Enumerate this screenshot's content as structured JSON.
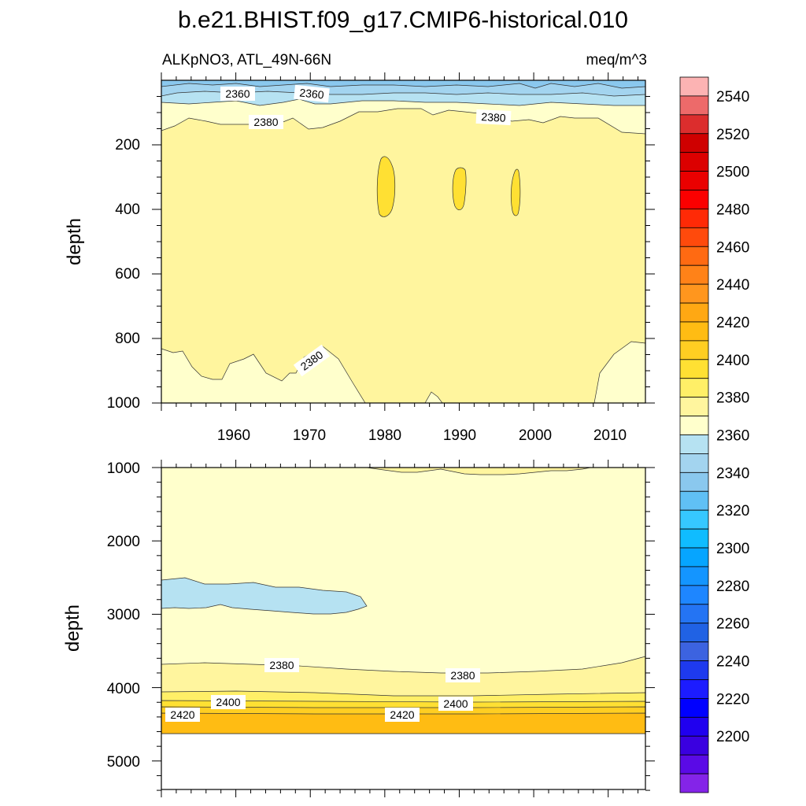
{
  "chart_data": [
    {
      "type": "contour",
      "title": "b.e21.BHIST.f09_g17.CMIP6-historical.010",
      "subtitle_left": "ALKpNO3, ATL_49N-66N",
      "subtitle_right": "meq/m^3",
      "ylabel": "depth",
      "y_reversed": true,
      "ylim": [
        0,
        1000
      ],
      "y_ticks": [
        "200",
        "400",
        "600",
        "800",
        "1000"
      ],
      "xlim": [
        1950,
        2015
      ],
      "x_ticks": [
        "1960",
        "1970",
        "1980",
        "1990",
        "2000",
        "2010"
      ],
      "contour_labels": [
        "2360",
        "2360",
        "2380",
        "2380",
        "2380"
      ],
      "regions": [
        {
          "range": "2340-2350",
          "depth": "surface 0-10"
        },
        {
          "range": "2350-2360",
          "depth": "10-35"
        },
        {
          "range": "2360-2370",
          "depth": "35-80"
        },
        {
          "range": "2370-2380",
          "depth": "80-160"
        },
        {
          "range": "2380-2390",
          "depth": "160-1000"
        },
        {
          "range": "2390-2400",
          "depth": "250-450 patches near 1980, 1990, 1997"
        },
        {
          "range": "2370-2380",
          "depth": "below ~850 before 1978 and after 2007"
        }
      ]
    },
    {
      "type": "contour",
      "ylabel": "depth",
      "y_reversed": true,
      "ylim": [
        1000,
        5400
      ],
      "y_ticks": [
        "1000",
        "2000",
        "3000",
        "4000",
        "5000"
      ],
      "xlim": [
        1950,
        2015
      ],
      "contour_labels": [
        "2380",
        "2380",
        "2400",
        "2400",
        "2420",
        "2420"
      ],
      "regions": [
        {
          "range": "2370-2380",
          "depth": "1000-3650"
        },
        {
          "range": "2360-2370",
          "depth": "2500-2950, years 1950-1978"
        },
        {
          "range": "2380-2390",
          "depth": "3650-4050"
        },
        {
          "range": "2390-2400",
          "depth": "4050-4200"
        },
        {
          "range": "2400-2420",
          "depth": "4200-4350"
        },
        {
          "range": "2420-2430",
          "depth": "4350-4600"
        },
        {
          "range": "no data",
          "depth": "below 4600"
        }
      ]
    }
  ],
  "colorbar": {
    "labels": [
      "2200",
      "2220",
      "2240",
      "2260",
      "2280",
      "2300",
      "2320",
      "2340",
      "2360",
      "2380",
      "2400",
      "2420",
      "2440",
      "2460",
      "2480",
      "2500",
      "2520",
      "2540"
    ],
    "colors": [
      "#fcb3b3",
      "#ed6a6a",
      "#dc2d2d",
      "#cf0000",
      "#dc0000",
      "#ea0000",
      "#fb0000",
      "#ff2a06",
      "#ff4a0c",
      "#ff6a12",
      "#ff8218",
      "#ff961e",
      "#ffa813",
      "#ffbc13",
      "#ffce22",
      "#ffe033",
      "#ffef67",
      "#fff59e",
      "#ffffcc",
      "#b6e2f2",
      "#a3d4ef",
      "#8ac8ee",
      "#60c0f5",
      "#36c8ff",
      "#10bcff",
      "#06a5ff",
      "#1495ff",
      "#1e86ff",
      "#2474f3",
      "#2062e4",
      "#3c63e0",
      "#1e3aee",
      "#1c1cff",
      "#0000ff",
      "#2000ef",
      "#3a00e0",
      "#5a0ae6",
      "#8424e8"
    ]
  }
}
